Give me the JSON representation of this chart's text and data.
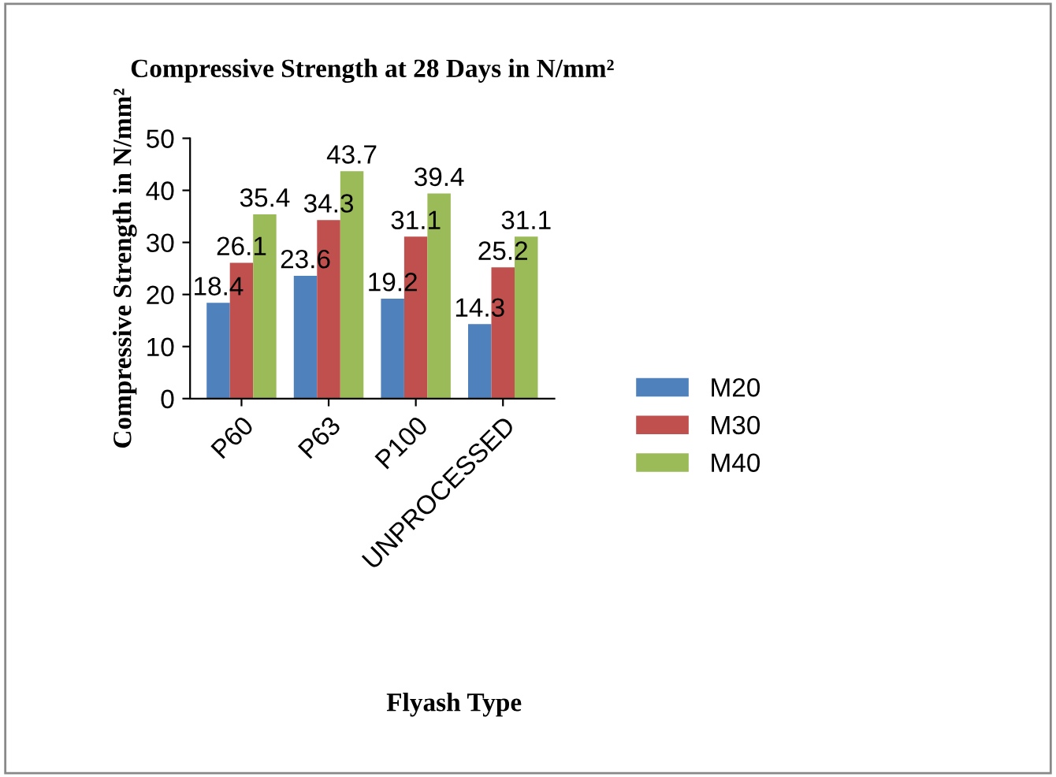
{
  "chart_data": {
    "type": "bar",
    "title": "Compressive Strength at 28 Days in N/mm²",
    "xlabel": "Flyash Type",
    "ylabel": "Compressive Strength in N/mm²",
    "categories": [
      "P60",
      "P63",
      "P100",
      "UNPROCESSED"
    ],
    "series": [
      {
        "name": "M20",
        "color": "#4f81bd",
        "values": [
          18.4,
          23.6,
          19.2,
          14.3
        ]
      },
      {
        "name": "M30",
        "color": "#c0504d",
        "values": [
          26.1,
          34.3,
          31.1,
          25.2
        ]
      },
      {
        "name": "M40",
        "color": "#9bbb59",
        "values": [
          35.4,
          43.7,
          39.4,
          31.1
        ]
      }
    ],
    "ylim": [
      0,
      50
    ],
    "yticks": [
      0,
      10,
      20,
      30,
      40,
      50
    ],
    "grid": false,
    "legend": "right",
    "data_labels": true
  }
}
